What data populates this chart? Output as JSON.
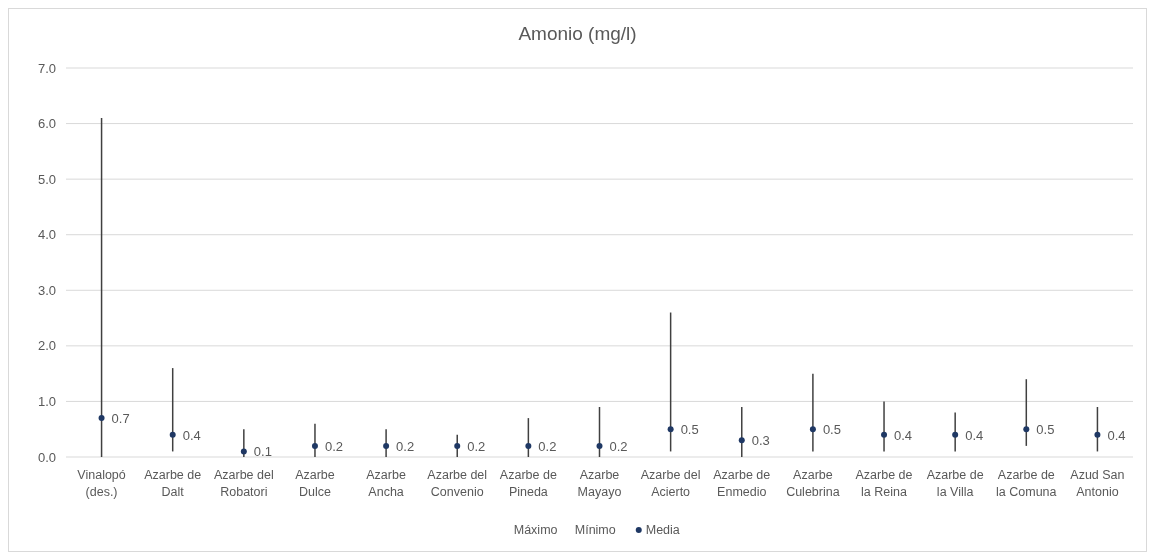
{
  "chart_data": {
    "type": "scatter",
    "title": "Amonio (mg/l)",
    "categories": [
      "Vinalopó (des.)",
      "Azarbe de Dalt",
      "Azarbe del Robatori",
      "Azarbe Dulce",
      "Azarbe Ancha",
      "Azarbe del Convenio",
      "Azarbe de Pineda",
      "Azarbe Mayayo",
      "Azarbe del Acierto",
      "Azarbe de Enmedio",
      "Azarbe Culebrina",
      "Azarbe de la Reina",
      "Azarbe de la Villa",
      "Azarbe de la Comuna",
      "Azud San Antonio"
    ],
    "series": [
      {
        "name": "Media",
        "marker": "circle",
        "color": "#1f3864",
        "values": [
          0.7,
          0.4,
          0.1,
          0.2,
          0.2,
          0.2,
          0.2,
          0.2,
          0.5,
          0.3,
          0.5,
          0.4,
          0.4,
          0.5,
          0.4
        ],
        "value_labels": [
          "0.7",
          "0.4",
          "0.1",
          "0.2",
          "0.2",
          "0.2",
          "0.2",
          "0.2",
          "0.5",
          "0.3",
          "0.5",
          "0.4",
          "0.4",
          "0.5",
          "0.4"
        ],
        "errors": [
          [
            0,
            6.1
          ],
          [
            0.1,
            1.6
          ],
          [
            0,
            0.5
          ],
          [
            0,
            0.6
          ],
          [
            0,
            0.5
          ],
          [
            0,
            0.4
          ],
          [
            0,
            0.7
          ],
          [
            0,
            0.9
          ],
          [
            0.1,
            2.6
          ],
          [
            0,
            0.9
          ],
          [
            0.1,
            1.5
          ],
          [
            0.1,
            1.0
          ],
          [
            0.1,
            0.8
          ],
          [
            0.2,
            1.4
          ],
          [
            0.1,
            0.9
          ]
        ]
      }
    ],
    "annotations": [
      "Máximo",
      "Mínimo"
    ],
    "ylim": [
      0,
      7
    ],
    "yticks": [
      {
        "value": 0,
        "label": "0.0"
      },
      {
        "value": 1,
        "label": "1.0"
      },
      {
        "value": 2,
        "label": "2.0"
      },
      {
        "value": 3,
        "label": "3.0"
      },
      {
        "value": 4,
        "label": "4.0"
      },
      {
        "value": 5,
        "label": "5.0"
      },
      {
        "value": 6,
        "label": "6.0"
      },
      {
        "value": 7,
        "label": "7.0"
      }
    ],
    "grid": "y",
    "legend": "bottom"
  }
}
